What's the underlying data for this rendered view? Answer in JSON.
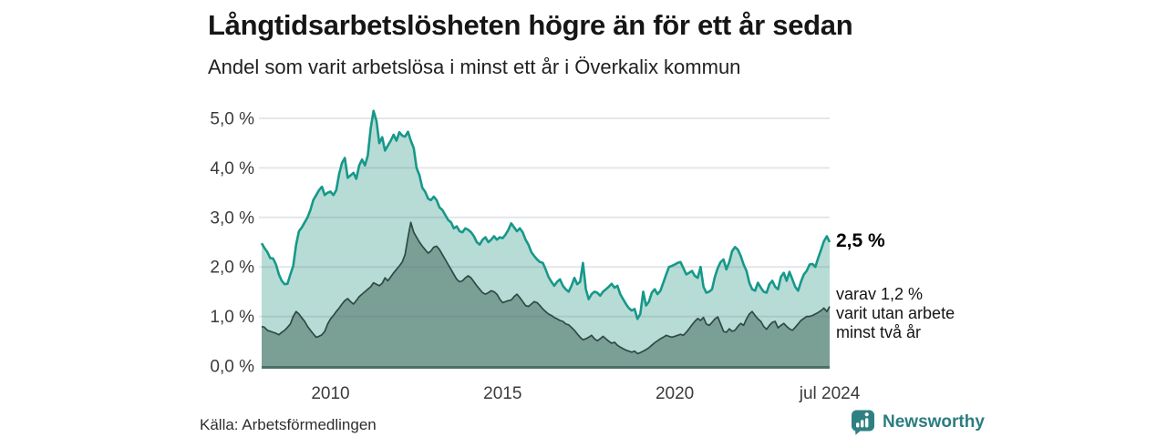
{
  "header": {
    "title": "Långtidsarbetslösheten högre än för ett år sedan",
    "subtitle": "Andel som varit arbetslösa i minst ett år i Överkalix kommun"
  },
  "annotations": {
    "latest_total": "2,5 %",
    "subset_line1": "varav 1,2 %",
    "subset_line2": "varit utan arbete",
    "subset_line3": "minst två år"
  },
  "footer": {
    "source": "Källa: Arbetsförmedlingen",
    "logo_text": "Newsworthy"
  },
  "colors": {
    "total_line": "#16988a",
    "total_fill": "#b7dcd5",
    "subset_line": "#2e4a45",
    "subset_fill": "#7aa096",
    "gridline": "rgba(88,98,128,0.16)",
    "axis_line": "#4e6f69",
    "tick_text": "#3b3b3b",
    "logo_teal": "#2e8083"
  },
  "chart_data": {
    "type": "area",
    "title": "Långtidsarbetslösheten högre än för ett år sedan",
    "subtitle": "Andel som varit arbetslösa i minst ett år i Överkalix kommun",
    "grid": true,
    "x_range": [
      2008.0,
      2024.5
    ],
    "y_range": [
      0,
      5
    ],
    "x_axis": {
      "ticks": [
        {
          "label": "2010",
          "year": 2010
        },
        {
          "label": "2015",
          "year": 2015
        },
        {
          "label": "2020",
          "year": 2020
        },
        {
          "label": "jul 2024",
          "year": 2024.5
        }
      ]
    },
    "y_axis": {
      "ticks": [
        {
          "label": "0,0 %",
          "value": 0
        },
        {
          "label": "1,0 %",
          "value": 1
        },
        {
          "label": "2,0 %",
          "value": 2
        },
        {
          "label": "3,0 %",
          "value": 3
        },
        {
          "label": "4,0 %",
          "value": 4
        },
        {
          "label": "5,0 %",
          "value": 5
        }
      ]
    },
    "series": [
      {
        "name": "Arbetslösa minst ett år",
        "end_label": "2,5 %",
        "end_value": 2.5,
        "start_year": 2008.0,
        "months_step": 1,
        "values": [
          2.48,
          2.38,
          2.3,
          2.18,
          2.17,
          2.05,
          1.85,
          1.72,
          1.65,
          1.66,
          1.85,
          2.02,
          2.45,
          2.72,
          2.8,
          2.9,
          3.0,
          3.15,
          3.35,
          3.45,
          3.55,
          3.62,
          3.45,
          3.5,
          3.52,
          3.45,
          3.55,
          3.88,
          4.1,
          4.2,
          3.8,
          3.85,
          3.9,
          3.78,
          4.05,
          4.17,
          4.05,
          4.25,
          4.8,
          5.15,
          4.95,
          4.5,
          4.62,
          4.35,
          4.45,
          4.55,
          4.67,
          4.55,
          4.72,
          4.65,
          4.63,
          4.73,
          4.55,
          4.4,
          4.0,
          3.85,
          3.6,
          3.52,
          3.38,
          3.35,
          3.42,
          3.35,
          3.2,
          3.15,
          3.05,
          2.95,
          2.9,
          2.78,
          2.82,
          2.72,
          2.7,
          2.78,
          2.75,
          2.7,
          2.62,
          2.5,
          2.45,
          2.55,
          2.6,
          2.5,
          2.55,
          2.62,
          2.55,
          2.6,
          2.58,
          2.65,
          2.75,
          2.88,
          2.8,
          2.72,
          2.78,
          2.7,
          2.55,
          2.45,
          2.3,
          2.22,
          2.15,
          2.1,
          2.08,
          1.95,
          1.8,
          1.7,
          1.62,
          1.7,
          1.75,
          1.62,
          1.55,
          1.5,
          1.62,
          1.78,
          1.65,
          1.7,
          2.08,
          1.55,
          1.35,
          1.45,
          1.5,
          1.48,
          1.42,
          1.5,
          1.55,
          1.6,
          1.66,
          1.58,
          1.62,
          1.45,
          1.35,
          1.25,
          1.17,
          1.12,
          1.15,
          0.95,
          1.05,
          1.5,
          1.22,
          1.3,
          1.48,
          1.55,
          1.45,
          1.52,
          1.68,
          1.85,
          2.0,
          2.02,
          2.05,
          2.08,
          2.1,
          1.98,
          1.85,
          1.88,
          1.92,
          1.82,
          1.78,
          2.0,
          1.6,
          1.48,
          1.5,
          1.55,
          1.8,
          1.98,
          2.1,
          2.15,
          1.95,
          2.1,
          2.32,
          2.4,
          2.35,
          2.22,
          2.05,
          1.92,
          1.68,
          1.55,
          1.52,
          1.68,
          1.58,
          1.5,
          1.48,
          1.65,
          1.72,
          1.6,
          1.55,
          1.8,
          1.88,
          1.72,
          1.9,
          1.75,
          1.6,
          1.52,
          1.7,
          1.85,
          1.92,
          2.05,
          2.06,
          2.0,
          2.18,
          2.35,
          2.52,
          2.62,
          2.5
        ]
      },
      {
        "name": "Varav utan arbete minst två år",
        "end_label": "varav 1,2 % varit utan arbete minst två år",
        "end_value": 1.2,
        "start_year": 2008.0,
        "months_step": 1,
        "values": [
          0.8,
          0.78,
          0.72,
          0.7,
          0.68,
          0.66,
          0.63,
          0.68,
          0.72,
          0.78,
          0.85,
          1.0,
          1.1,
          1.05,
          0.97,
          0.9,
          0.8,
          0.72,
          0.65,
          0.58,
          0.6,
          0.63,
          0.7,
          0.85,
          0.95,
          1.02,
          1.1,
          1.17,
          1.25,
          1.32,
          1.36,
          1.3,
          1.25,
          1.32,
          1.4,
          1.45,
          1.5,
          1.55,
          1.6,
          1.68,
          1.65,
          1.62,
          1.67,
          1.78,
          1.72,
          1.8,
          1.88,
          1.95,
          2.02,
          2.1,
          2.25,
          2.6,
          2.9,
          2.7,
          2.6,
          2.5,
          2.42,
          2.35,
          2.28,
          2.32,
          2.4,
          2.42,
          2.35,
          2.25,
          2.15,
          2.05,
          1.95,
          1.85,
          1.75,
          1.7,
          1.72,
          1.78,
          1.82,
          1.78,
          1.7,
          1.62,
          1.55,
          1.48,
          1.45,
          1.48,
          1.52,
          1.5,
          1.45,
          1.35,
          1.28,
          1.3,
          1.32,
          1.33,
          1.4,
          1.45,
          1.38,
          1.3,
          1.22,
          1.2,
          1.25,
          1.3,
          1.28,
          1.22,
          1.15,
          1.1,
          1.05,
          1.02,
          0.98,
          0.95,
          0.92,
          0.9,
          0.85,
          0.83,
          0.78,
          0.72,
          0.65,
          0.58,
          0.53,
          0.55,
          0.58,
          0.62,
          0.55,
          0.51,
          0.55,
          0.6,
          0.55,
          0.5,
          0.46,
          0.48,
          0.42,
          0.38,
          0.35,
          0.32,
          0.3,
          0.28,
          0.3,
          0.25,
          0.27,
          0.3,
          0.33,
          0.37,
          0.42,
          0.47,
          0.51,
          0.55,
          0.58,
          0.62,
          0.6,
          0.58,
          0.6,
          0.62,
          0.64,
          0.62,
          0.68,
          0.75,
          0.83,
          0.9,
          0.96,
          0.92,
          0.98,
          0.85,
          0.82,
          0.88,
          0.95,
          0.99,
          0.85,
          0.7,
          0.68,
          0.75,
          0.7,
          0.72,
          0.8,
          0.86,
          0.82,
          0.95,
          1.05,
          1.1,
          1.02,
          0.95,
          0.9,
          0.8,
          0.74,
          0.82,
          0.88,
          0.9,
          0.77,
          0.82,
          0.86,
          0.8,
          0.75,
          0.72,
          0.78,
          0.85,
          0.92,
          0.96,
          1.0,
          1.0,
          1.02,
          1.05,
          1.08,
          1.12,
          1.17,
          1.1,
          1.2
        ]
      }
    ]
  }
}
